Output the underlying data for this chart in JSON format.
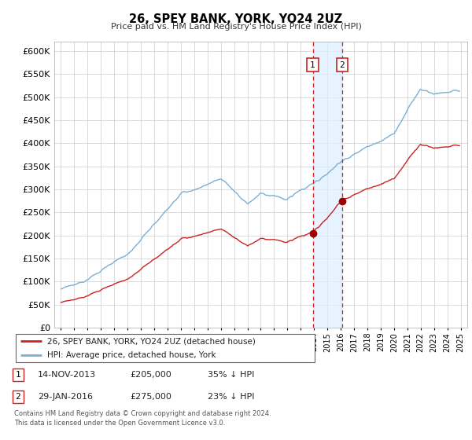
{
  "title": "26, SPEY BANK, YORK, YO24 2UZ",
  "subtitle": "Price paid vs. HM Land Registry's House Price Index (HPI)",
  "legend_line1": "26, SPEY BANK, YORK, YO24 2UZ (detached house)",
  "legend_line2": "HPI: Average price, detached house, York",
  "footnote1": "Contains HM Land Registry data © Crown copyright and database right 2024.",
  "footnote2": "This data is licensed under the Open Government Licence v3.0.",
  "sale1_date": "14-NOV-2013",
  "sale1_price": 205000,
  "sale1_label": "1",
  "sale1_pct": "35% ↓ HPI",
  "sale2_date": "29-JAN-2016",
  "sale2_price": 275000,
  "sale2_label": "2",
  "sale2_pct": "23% ↓ HPI",
  "hpi_color": "#7ab0d4",
  "price_color": "#cc2222",
  "sale_marker_color": "#990000",
  "vline_color": "#cc2222",
  "shade_color": "#ddeeff",
  "ylim_min": 0,
  "ylim_max": 620000,
  "ytick_step": 50000,
  "sale1_x": 2013.9,
  "sale2_x": 2016.1,
  "background_color": "#ffffff",
  "grid_color": "#cccccc",
  "xmin": 1994.5,
  "xmax": 2025.5
}
